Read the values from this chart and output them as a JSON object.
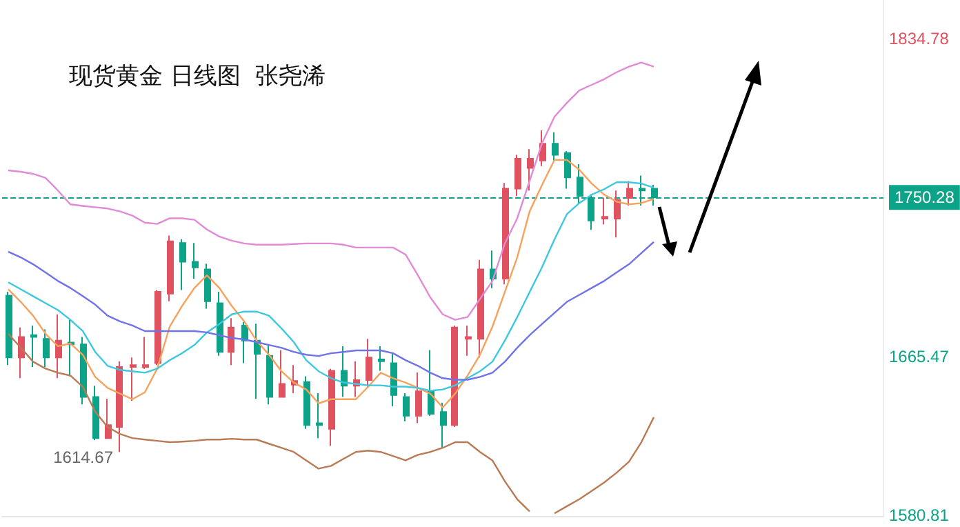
{
  "chart_data": {
    "type": "candlestick",
    "title": "现货黄金 日线图  张尧浠",
    "categories": [
      null,
      null,
      null,
      null,
      null,
      null,
      null,
      null,
      null,
      null,
      null,
      null,
      null,
      null,
      null,
      null,
      null,
      null,
      null,
      null,
      null,
      null,
      null,
      null,
      null,
      null,
      null,
      null,
      null,
      null,
      null,
      null,
      null,
      null,
      null,
      null,
      null,
      null,
      null,
      null,
      null,
      null,
      null,
      null,
      null,
      null,
      null,
      null,
      null,
      null,
      null,
      null,
      null
    ],
    "ohlc": [
      [
        1698,
        1700,
        1661,
        1665
      ],
      [
        1665,
        1681,
        1654,
        1676
      ],
      [
        1677,
        1682,
        1660,
        1676
      ],
      [
        1675,
        1680,
        1660,
        1665
      ],
      [
        1665,
        1688,
        1654,
        1674
      ],
      [
        1673,
        1685,
        1655,
        1672
      ],
      [
        1672,
        1676,
        1640,
        1644
      ],
      [
        1644,
        1650,
        1621,
        1622
      ],
      [
        1622,
        1643,
        1622,
        1629
      ],
      [
        1628,
        1663,
        1614.67,
        1660
      ],
      [
        1660,
        1665,
        1642,
        1661
      ],
      [
        1660,
        1676,
        1659,
        1661
      ],
      [
        1662,
        1701,
        1661,
        1700
      ],
      [
        1699,
        1730,
        1695,
        1727
      ],
      [
        1726,
        1728,
        1701,
        1716
      ],
      [
        1716,
        1726,
        1707,
        1713
      ],
      [
        1712,
        1715,
        1691,
        1695
      ],
      [
        1694,
        1700,
        1666,
        1668
      ],
      [
        1668,
        1686,
        1661,
        1681
      ],
      [
        1682,
        1684,
        1662,
        1674
      ],
      [
        1674,
        1683,
        1643,
        1667
      ],
      [
        1666,
        1672,
        1640,
        1644
      ],
      [
        1644,
        1669,
        1644,
        1651
      ],
      [
        1650.5,
        1661,
        1646,
        1652.5
      ],
      [
        1652,
        1655,
        1627,
        1629
      ],
      [
        1630,
        1646,
        1622,
        1629
      ],
      [
        1627,
        1659,
        1618,
        1658
      ],
      [
        1658,
        1671,
        1644,
        1650
      ],
      [
        1650,
        1663,
        1644,
        1653
      ],
      [
        1653,
        1675,
        1649,
        1665
      ],
      [
        1664,
        1671,
        1658,
        1663
      ],
      [
        1662,
        1667,
        1639,
        1645
      ],
      [
        1644,
        1646,
        1631,
        1634
      ],
      [
        1634,
        1657,
        1630,
        1647
      ],
      [
        1647,
        1669,
        1634,
        1635
      ],
      [
        1636,
        1641,
        1617,
        1629
      ],
      [
        1629,
        1682,
        1628,
        1681
      ],
      [
        1675,
        1682,
        1666,
        1676
      ],
      [
        1675,
        1717,
        1665,
        1712
      ],
      [
        1712,
        1722,
        1702,
        1707
      ],
      [
        1707,
        1758,
        1704,
        1755
      ],
      [
        1755,
        1773,
        1751,
        1771
      ],
      [
        1766,
        1776,
        1754,
        1771
      ],
      [
        1770,
        1786,
        1767,
        1779
      ],
      [
        1779,
        1785,
        1770,
        1773
      ],
      [
        1774,
        1775,
        1755,
        1761
      ],
      [
        1761,
        1768,
        1747,
        1751
      ],
      [
        1750,
        1752,
        1733,
        1738
      ],
      [
        1739,
        1750,
        1736,
        1740
      ],
      [
        1739,
        1754,
        1729,
        1749
      ],
      [
        1750,
        1759,
        1746,
        1755
      ],
      [
        1755,
        1762,
        1746,
        1754
      ],
      [
        1755,
        1757,
        1746,
        1750.28
      ]
    ],
    "series": [
      {
        "type": "line",
        "color": "#f5a25d",
        "values": [
          1701.4,
          1694.7,
          1687.3,
          1677.7,
          1671.0,
          1672.5,
          1666.5,
          1654.7,
          1648.8,
          1645.8,
          1642.8,
          1646.5,
          1659.1,
          1681.4,
          1692.5,
          1702.1,
          1708.8,
          1702.1,
          1692.5,
          1684.3,
          1674.0,
          1666.5,
          1657.7,
          1651.7,
          1648.0,
          1640.6,
          1642.8,
          1642.8,
          1642.8,
          1649.5,
          1656.9,
          1654.0,
          1651.7,
          1648.8,
          1645.8,
          1638.4,
          1645.8,
          1655.4,
          1666.5,
          1681.4,
          1699.9,
          1718.4,
          1742.9,
          1757.0,
          1770.3,
          1770.3,
          1765.1,
          1757.7,
          1751.8,
          1748.1,
          1746.6,
          1747.3,
          1749.5
        ]
      },
      {
        "type": "line",
        "color": "#3ec8e0",
        "values": [
          1705.1,
          1701.4,
          1697.7,
          1694.0,
          1690.3,
          1685.1,
          1679.1,
          1668.0,
          1660.6,
          1658.4,
          1657.7,
          1656.9,
          1659.1,
          1663.6,
          1667.3,
          1671.7,
          1678.4,
          1682.9,
          1688.0,
          1689.5,
          1689.5,
          1687.3,
          1680.6,
          1673.2,
          1663.6,
          1657.7,
          1654.0,
          1651.7,
          1651.0,
          1650.2,
          1650.2,
          1649.5,
          1649.5,
          1648.8,
          1647.3,
          1648.0,
          1650.2,
          1654.0,
          1657.7,
          1662.8,
          1674.0,
          1686.6,
          1699.9,
          1713.2,
          1728.0,
          1741.4,
          1747.3,
          1751.8,
          1754.7,
          1758.4,
          1758.4,
          1757.7,
          1755.5
        ]
      },
      {
        "type": "line",
        "color": "#6f72ea",
        "values": [
          1721.4,
          1718.4,
          1714.7,
          1710.3,
          1705.8,
          1702.1,
          1697.7,
          1693.2,
          1687.3,
          1684.3,
          1682.1,
          1679.1,
          1679.1,
          1679.1,
          1679.1,
          1679.1,
          1678.4,
          1676.9,
          1675.4,
          1674.7,
          1673.2,
          1671.7,
          1670.2,
          1668.0,
          1666.5,
          1665.8,
          1667.3,
          1668.0,
          1668.8,
          1668.8,
          1668.8,
          1667.3,
          1663.6,
          1660.6,
          1656.9,
          1654.0,
          1653.2,
          1653.2,
          1654.7,
          1656.9,
          1662.8,
          1670.2,
          1676.9,
          1682.9,
          1688.8,
          1694.7,
          1698.4,
          1702.1,
          1705.8,
          1710.3,
          1714.7,
          1720.7,
          1726.6
        ]
      },
      {
        "type": "line",
        "color": "#e18ad6",
        "values": [
          1764.7,
          1764.0,
          1762.9,
          1760.7,
          1754.0,
          1746.6,
          1745.8,
          1745.1,
          1744.4,
          1742.9,
          1740.6,
          1736.9,
          1736.2,
          1739.2,
          1739.2,
          1738.4,
          1733.2,
          1729.5,
          1727.3,
          1725.8,
          1725.1,
          1725.1,
          1725.1,
          1725.5,
          1725.8,
          1725.8,
          1725.8,
          1725.1,
          1723.6,
          1723.6,
          1723.6,
          1723.6,
          1719.9,
          1708.8,
          1697.0,
          1688.0,
          1685.1,
          1686.6,
          1696.2,
          1705.8,
          1725.8,
          1739.2,
          1759.2,
          1779.2,
          1793.3,
          1800.7,
          1807.3,
          1810.3,
          1813.3,
          1817.0,
          1820.0,
          1822.2,
          1820.0
        ]
      },
      {
        "type": "line",
        "color": "#b97a56",
        "values": [
          1677.7,
          1670.3,
          1662.8,
          1659.1,
          1656.9,
          1655.4,
          1649.5,
          1636.2,
          1628.0,
          1624.3,
          1622.1,
          1621.3,
          1620.6,
          1619.9,
          1620.2,
          1620.6,
          1621.3,
          1621.3,
          1621.7,
          1621.3,
          1621.3,
          1619.1,
          1616.9,
          1614.7,
          1610.2,
          1605.8,
          1607.3,
          1611.0,
          1614.7,
          1615.4,
          1614.7,
          1612.5,
          1610.2,
          1613.2,
          1614.7,
          1616.9,
          1619.9,
          1619.9,
          1614.7,
          1610.2,
          1599.1,
          1589.5,
          1583,
          null,
          1582,
          1585.8,
          1589.5,
          1593.9,
          1598.4,
          1603.6,
          1609.5,
          1619.9,
          1633.2
        ]
      }
    ],
    "ylim": [
      1580.6,
      1855.5
    ],
    "yticks": [
      1580.81,
      1665.47,
      1834.78
    ],
    "ref_lines": [
      {
        "axis": "y",
        "value": 1750.28,
        "label": "1750.28",
        "color": "#0ca388",
        "line_style": "dashed"
      }
    ],
    "annotations": [
      "1614.67"
    ],
    "marker": "none",
    "line_style": "solid"
  }
}
